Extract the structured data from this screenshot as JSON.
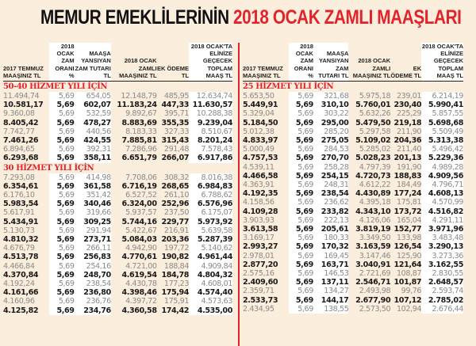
{
  "title": {
    "black": "MEMUR EMEKLİLERİNİN",
    "red": "2018 OCAK ZAMLI MAAŞLARI"
  },
  "colors": {
    "accent_red": "#e3232b",
    "background": "#fbeedd",
    "column_highlight": "#ffffff"
  },
  "headers": [
    "2017 TEMMUZ MAAŞINIZ TL",
    "2018 OCAK ZAM ORANI %",
    "MAAŞA YANSIYAN ZAM TUTARI TL",
    "2018 OCAK ZAMLI MAAŞINIZ TL",
    "EK ÖDEME TL",
    "2018 OCAK'TA ELİNİZE GEÇECEK TOPLAM MAAŞ TL"
  ],
  "left": {
    "sections": [
      {
        "title": "50-40 HİZMET YILI İÇİN",
        "rows": [
          [
            "11.494,74",
            "5,69",
            "654,05",
            "12.148,79",
            "485,95",
            "12.634,74"
          ],
          [
            "10.581,17",
            "5,69",
            "602,07",
            "11.183,24",
            "447,33",
            "11.630,57"
          ],
          [
            "9.360,08",
            "5,69",
            "532,59",
            "9.892,67",
            "395,71",
            "10.288,38"
          ],
          [
            "8.405,42",
            "5,69",
            "478,27",
            "8.883,69",
            "355,35",
            "9.239,04"
          ],
          [
            "7.742,77",
            "5,69",
            "440,56",
            "8.183,33",
            "327,33",
            "8.510,67"
          ],
          [
            "7.461,26",
            "5,69",
            "424,55",
            "7.885,81",
            "315,43",
            "8.201,24"
          ],
          [
            "6.894,65",
            "5,69",
            "392,31",
            "7.286,96",
            "291,48",
            "7.578,43"
          ],
          [
            "6.293,68",
            "5,69",
            "358,11",
            "6.651,79",
            "266,07",
            "6.917,86"
          ]
        ]
      },
      {
        "title": "30 HİZMET YILI İÇİN",
        "rows": [
          [
            "7.293,08",
            "5,69",
            "414,98",
            "7.708,06",
            "308,32",
            "8.016,38"
          ],
          [
            "6.354,61",
            "5,69",
            "361,58",
            "6.716,19",
            "268,65",
            "6.984,83"
          ],
          [
            "6.176,10",
            "5,69",
            "351,42",
            "6.527,52",
            "261,10",
            "6.788,62"
          ],
          [
            "5.983,54",
            "5,69",
            "340,46",
            "6.324,00",
            "252,96",
            "6.576,96"
          ],
          [
            "5.617,91",
            "5,69",
            "319,66",
            "5.937,57",
            "237,50",
            "6.175,07"
          ],
          [
            "5.434,91",
            "5,69",
            "309,25",
            "5.744,16",
            "229,77",
            "5.973,92"
          ],
          [
            "5.130,73",
            "5,69",
            "291,94",
            "5.422,67",
            "216,91",
            "5.639,58"
          ],
          [
            "4.810,32",
            "5,69",
            "273,71",
            "5.084,03",
            "203,36",
            "5.287,39"
          ],
          [
            "4.676,79",
            "5,69",
            "266,11",
            "4.942,90",
            "197,72",
            "5.140,62"
          ],
          [
            "4.513,78",
            "5,69",
            "256,83",
            "4.770,61",
            "190,82",
            "4.961,44"
          ],
          [
            "4.466,84",
            "5,69",
            "254,16",
            "4.721,00",
            "188,84",
            "4.909,84"
          ],
          [
            "4.370,84",
            "5,69",
            "248,70",
            "4.619,54",
            "184,78",
            "4.804,32"
          ],
          [
            "4.192,24",
            "5,69",
            "238,54",
            "4.430,78",
            "177,23",
            "4.608,01"
          ],
          [
            "4.161,66",
            "5,69",
            "236,80",
            "4.398,46",
            "175,94",
            "4.574,40"
          ],
          [
            "4.160,96",
            "5,69",
            "236,76",
            "4.397,72",
            "175,91",
            "4.573,63"
          ],
          [
            "4.125,82",
            "5,69",
            "234,76",
            "4.360,58",
            "174,42",
            "4.535,00"
          ]
        ]
      }
    ]
  },
  "right": {
    "sections": [
      {
        "title": "25 HİZMET YILI İÇİN",
        "rows": [
          [
            "5.653,50",
            "5,69",
            "321,68",
            "5.975,18",
            "239,01",
            "6.214,19"
          ],
          [
            "5.449,91",
            "5,69",
            "310,10",
            "5.760,01",
            "230,40",
            "5.990,41"
          ],
          [
            "5.329,04",
            "5,69",
            "303,22",
            "5.632,26",
            "225,29",
            "5.857,55"
          ],
          [
            "5.184,50",
            "5,69",
            "295,00",
            "5.479,50",
            "219,18",
            "5.698,68"
          ],
          [
            "5.012,38",
            "5,69",
            "285,20",
            "5.297,58",
            "211,90",
            "5.509,49"
          ],
          [
            "4.833,97",
            "5,69",
            "275,05",
            "5.109,02",
            "204,36",
            "5.313,38"
          ],
          [
            "5.000,49",
            "5,69",
            "284,53",
            "5.285,02",
            "211,40",
            "5.496,42"
          ],
          [
            "4.757,53",
            "5,69",
            "270,70",
            "5.028,23",
            "201,13",
            "5.229,36"
          ],
          [
            "4.539,11",
            "5,69",
            "258,28",
            "4.797,39",
            "191,90",
            "4.989,28"
          ],
          [
            "4.466,58",
            "5,69",
            "254,15",
            "4.720,73",
            "188,83",
            "4.909,56"
          ],
          [
            "4.363,91",
            "5,69",
            "248,31",
            "4.612,22",
            "184,49",
            "4.796,71"
          ],
          [
            "4.192,35",
            "5,69",
            "238,54",
            "4.430,89",
            "177,24",
            "4.608,13"
          ],
          [
            "4.158,56",
            "5,69",
            "236,62",
            "4.395,18",
            "175,81",
            "4.570,99"
          ],
          [
            "4.109,28",
            "5,69",
            "233,82",
            "4.343,10",
            "173,72",
            "4.516,82"
          ],
          [
            "3.903,93",
            "5,69",
            "222,13",
            "4.126,06",
            "165,04",
            "4.291,11"
          ],
          [
            "3.613,58",
            "5,69",
            "205,61",
            "3.819,19",
            "152,77",
            "3.971,96"
          ],
          [
            "3.169,17",
            "5,69",
            "180,33",
            "3.349,50",
            "133,98",
            "3.483,48"
          ],
          [
            "2.993,27",
            "5,69",
            "170,32",
            "3.163,59",
            "126,54",
            "3.290,13"
          ],
          [
            "2.978,01",
            "5,69",
            "169,45",
            "3.147,46",
            "125,90",
            "3.273,36"
          ],
          [
            "2.877,20",
            "5,69",
            "163,71",
            "3.040,91",
            "121,64",
            "3.162,55"
          ],
          [
            "2.575,16",
            "5,69",
            "146,53",
            "2.721,69",
            "108,87",
            "2.830,55"
          ],
          [
            "2.409,60",
            "5,69",
            "137,11",
            "2.546,71",
            "101,87",
            "2.648,57"
          ],
          [
            "2.359,71",
            "5,69",
            "134,27",
            "2.493,98",
            "99,76",
            "2.593,74"
          ],
          [
            "2.533,73",
            "5,69",
            "144,17",
            "2.677,90",
            "107,12",
            "2.785,02"
          ],
          [
            "2.434,95",
            "5,69",
            "138,55",
            "2.573,50",
            "102,94",
            "2.676,44"
          ]
        ]
      }
    ]
  }
}
